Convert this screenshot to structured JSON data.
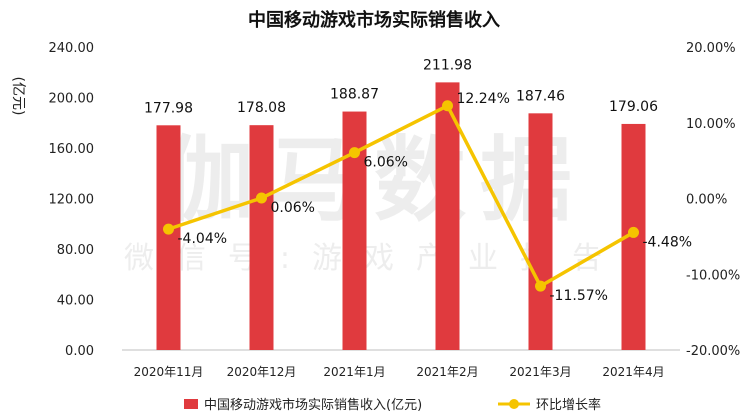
{
  "chart_data": {
    "type": "bar",
    "title": "中国移动游戏市场实际销售收入",
    "ylabel": "(亿元)",
    "categories": [
      "2020年11月",
      "2020年12月",
      "2021年1月",
      "2021年2月",
      "2021年3月",
      "2021年4月"
    ],
    "series": [
      {
        "name": "中国移动游戏市场实际销售收入(亿元)",
        "type": "bar",
        "axis": "left",
        "values": [
          177.98,
          178.08,
          188.87,
          211.98,
          187.46,
          179.06
        ],
        "labels": [
          "177.98",
          "178.08",
          "188.87",
          "211.98",
          "187.46",
          "179.06"
        ],
        "color": "#e03a3e"
      },
      {
        "name": "环比增长率",
        "type": "line",
        "axis": "right",
        "values": [
          -4.04,
          0.06,
          6.06,
          12.24,
          -11.57,
          -4.48
        ],
        "labels": [
          "-4.04%",
          "0.06%",
          "6.06%",
          "12.24%",
          "-11.57%",
          "-4.48%"
        ],
        "color": "#f5c400"
      }
    ],
    "y_left": {
      "lim": [
        0,
        240
      ],
      "ticks": [
        0,
        40,
        80,
        120,
        160,
        200,
        240
      ],
      "tick_labels": [
        "0.00",
        "40.00",
        "80.00",
        "120.00",
        "160.00",
        "200.00",
        "240.00"
      ]
    },
    "y_right": {
      "lim": [
        -20,
        20
      ],
      "ticks": [
        -20,
        -10,
        0,
        10,
        20
      ],
      "tick_labels": [
        "-20.00%",
        "-10.00%",
        "0.00%",
        "10.00%",
        "20.00%"
      ]
    },
    "grid": false,
    "legend": "bottom",
    "watermark": {
      "line1": "伽马数据",
      "line2": "微信号:游戏产业报告"
    }
  }
}
